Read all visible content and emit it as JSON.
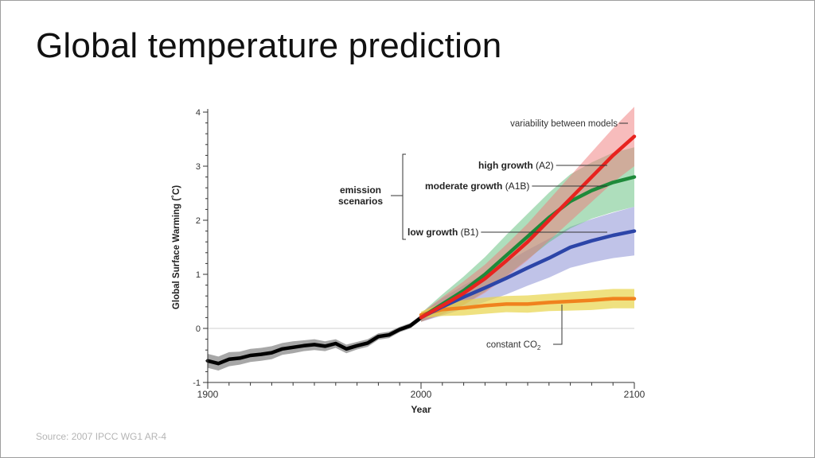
{
  "slide": {
    "title": "Global temperature prediction",
    "source": "Source: 2007 IPCC WG1 AR-4"
  },
  "chart_data": {
    "type": "line",
    "xlabel": "Year",
    "ylabel": "Global Surface Warming (˚C)",
    "xlim": [
      1900,
      2100
    ],
    "ylim": [
      -1,
      4
    ],
    "x_ticks": [
      "1900",
      "2000",
      "2100"
    ],
    "y_ticks": [
      "-1",
      "0",
      "1",
      "2",
      "3",
      "4"
    ],
    "bracket_label": "emission scenarios",
    "annotations": {
      "variability": "variability between models",
      "constant_co2_prefix": "constant CO",
      "constant_co2_sub": "2"
    },
    "colors": {
      "observed": "#000000",
      "high": "#e8231f",
      "moderate": "#1e8a3a",
      "low": "#2c45a8",
      "constant": "#f0821e"
    },
    "series": [
      {
        "key": "observed",
        "x": [
          1900,
          1905,
          1910,
          1915,
          1920,
          1925,
          1930,
          1935,
          1940,
          1945,
          1950,
          1955,
          1960,
          1965,
          1970,
          1975,
          1980,
          1985,
          1990,
          1995,
          2000
        ],
        "values": [
          -0.6,
          -0.65,
          -0.57,
          -0.55,
          -0.5,
          -0.48,
          -0.45,
          -0.38,
          -0.35,
          -0.32,
          -0.3,
          -0.33,
          -0.28,
          -0.38,
          -0.32,
          -0.27,
          -0.15,
          -0.12,
          -0.02,
          0.05,
          0.2
        ],
        "band": [
          0.13,
          0.13,
          0.13,
          0.12,
          0.12,
          0.12,
          0.12,
          0.11,
          0.11,
          0.1,
          0.1,
          0.09,
          0.08,
          0.08,
          0.07,
          0.07,
          0.06,
          0.06,
          0.05,
          0.05,
          0.05
        ]
      },
      {
        "key": "constant",
        "name_prefix": "constant CO",
        "x": [
          2000,
          2010,
          2020,
          2030,
          2040,
          2050,
          2060,
          2070,
          2080,
          2090,
          2100
        ],
        "values": [
          0.25,
          0.35,
          0.38,
          0.42,
          0.45,
          0.45,
          0.48,
          0.5,
          0.52,
          0.55,
          0.55
        ],
        "band": [
          0.06,
          0.12,
          0.14,
          0.15,
          0.15,
          0.16,
          0.16,
          0.17,
          0.18,
          0.18,
          0.18
        ]
      },
      {
        "key": "low",
        "name": "low growth (B1)",
        "x": [
          2000,
          2010,
          2020,
          2030,
          2040,
          2050,
          2060,
          2070,
          2080,
          2090,
          2100
        ],
        "values": [
          0.2,
          0.4,
          0.58,
          0.75,
          0.93,
          1.12,
          1.3,
          1.5,
          1.62,
          1.72,
          1.8
        ],
        "band": [
          0.08,
          0.16,
          0.22,
          0.26,
          0.3,
          0.33,
          0.36,
          0.38,
          0.4,
          0.42,
          0.45
        ]
      },
      {
        "key": "moderate",
        "name": "moderate growth (A1B)",
        "x": [
          2000,
          2010,
          2020,
          2030,
          2040,
          2050,
          2060,
          2070,
          2080,
          2090,
          2100
        ],
        "values": [
          0.2,
          0.45,
          0.7,
          1.0,
          1.35,
          1.7,
          2.05,
          2.35,
          2.55,
          2.7,
          2.8
        ],
        "band": [
          0.08,
          0.18,
          0.26,
          0.32,
          0.38,
          0.42,
          0.46,
          0.5,
          0.52,
          0.55,
          0.55
        ]
      },
      {
        "key": "high",
        "name": "high growth (A2)",
        "x": [
          2000,
          2010,
          2020,
          2030,
          2040,
          2050,
          2060,
          2070,
          2080,
          2090,
          2100
        ],
        "values": [
          0.2,
          0.42,
          0.65,
          0.92,
          1.25,
          1.6,
          2.0,
          2.4,
          2.8,
          3.2,
          3.55
        ],
        "band": [
          0.08,
          0.16,
          0.22,
          0.26,
          0.3,
          0.34,
          0.38,
          0.42,
          0.46,
          0.5,
          0.55
        ]
      }
    ]
  }
}
